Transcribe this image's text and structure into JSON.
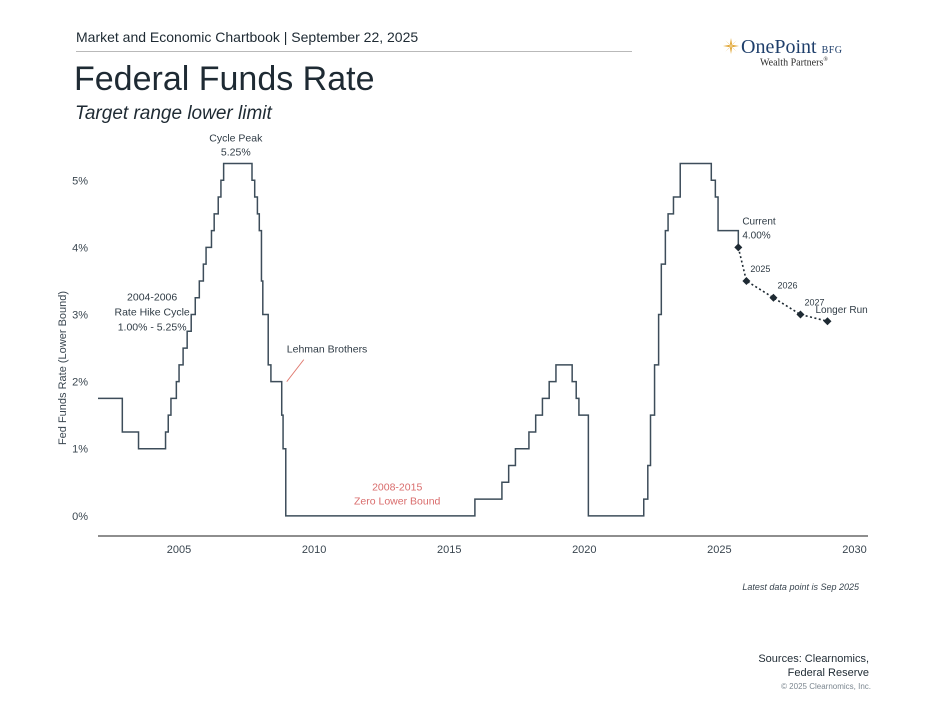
{
  "header": {
    "text": "Market and Economic Chartbook | September 22, 2025"
  },
  "logo": {
    "name": "OnePoint",
    "suffix": "BFG",
    "subtitle": "Wealth Partners",
    "trademark": "®"
  },
  "page_title": "Federal Funds Rate",
  "page_subtitle": "Target range lower limit",
  "note": "Latest data point is Sep 2025",
  "sources": {
    "line1": "Sources: Clearnomics,",
    "line2": "Federal Reserve"
  },
  "copyright": "© 2025 Clearnomics, Inc.",
  "colors": {
    "line": "#3d4d5a",
    "axis": "#4a4a4a",
    "zero_bound_text": "#d96c6c",
    "lehman_pointer": "#e07a70",
    "text": "#2f3b45"
  },
  "chart_data": {
    "type": "line",
    "ylabel": "Fed Funds Rate (Lower Bound)",
    "xlabel": "",
    "xlim": [
      2002.0,
      2030.5
    ],
    "ylim": [
      -0.3,
      5.6
    ],
    "x_ticks": [
      2005,
      2010,
      2015,
      2020,
      2025,
      2030
    ],
    "x_tick_labels": [
      "2005",
      "2010",
      "2015",
      "2020",
      "2025",
      "2030"
    ],
    "y_ticks": [
      0,
      1,
      2,
      3,
      4,
      5
    ],
    "y_tick_labels": [
      "0%",
      "1%",
      "2%",
      "3%",
      "4%",
      "5%"
    ],
    "grid": false,
    "series": [
      {
        "style": "step",
        "points": [
          [
            2002.0,
            1.75
          ],
          [
            2002.9,
            1.25
          ],
          [
            2003.5,
            1.0
          ],
          [
            2004.5,
            1.25
          ],
          [
            2004.6,
            1.5
          ],
          [
            2004.7,
            1.75
          ],
          [
            2004.9,
            2.0
          ],
          [
            2005.0,
            2.25
          ],
          [
            2005.15,
            2.5
          ],
          [
            2005.3,
            2.75
          ],
          [
            2005.45,
            3.0
          ],
          [
            2005.6,
            3.25
          ],
          [
            2005.75,
            3.5
          ],
          [
            2005.9,
            3.75
          ],
          [
            2006.0,
            4.0
          ],
          [
            2006.2,
            4.25
          ],
          [
            2006.3,
            4.5
          ],
          [
            2006.45,
            4.75
          ],
          [
            2006.55,
            5.0
          ],
          [
            2006.65,
            5.25
          ],
          [
            2007.7,
            5.0
          ],
          [
            2007.8,
            4.75
          ],
          [
            2007.9,
            4.5
          ],
          [
            2007.97,
            4.25
          ],
          [
            2008.05,
            3.5
          ],
          [
            2008.1,
            3.0
          ],
          [
            2008.3,
            2.25
          ],
          [
            2008.4,
            2.0
          ],
          [
            2008.8,
            1.5
          ],
          [
            2008.85,
            1.0
          ],
          [
            2008.95,
            0.0
          ],
          [
            2015.95,
            0.25
          ],
          [
            2016.95,
            0.5
          ],
          [
            2017.2,
            0.75
          ],
          [
            2017.45,
            1.0
          ],
          [
            2017.95,
            1.25
          ],
          [
            2018.2,
            1.5
          ],
          [
            2018.45,
            1.75
          ],
          [
            2018.7,
            2.0
          ],
          [
            2018.95,
            2.25
          ],
          [
            2019.55,
            2.0
          ],
          [
            2019.7,
            1.75
          ],
          [
            2019.8,
            1.5
          ],
          [
            2020.15,
            0.0
          ],
          [
            2022.2,
            0.25
          ],
          [
            2022.35,
            0.75
          ],
          [
            2022.45,
            1.5
          ],
          [
            2022.6,
            2.25
          ],
          [
            2022.75,
            3.0
          ],
          [
            2022.85,
            3.75
          ],
          [
            2023.0,
            4.25
          ],
          [
            2023.1,
            4.5
          ],
          [
            2023.3,
            4.75
          ],
          [
            2023.55,
            5.0
          ],
          [
            2023.55,
            5.25
          ],
          [
            2024.7,
            5.0
          ],
          [
            2024.85,
            4.75
          ],
          [
            2024.95,
            4.25
          ],
          [
            2025.7,
            4.0
          ]
        ]
      },
      {
        "style": "projection",
        "points": [
          [
            2025.7,
            4.0
          ],
          [
            2026.0,
            3.5
          ],
          [
            2027.0,
            3.25
          ],
          [
            2028.0,
            3.0
          ],
          [
            2029.0,
            2.9
          ]
        ],
        "labels": [
          "Current\n4.00%",
          "2025",
          "2026",
          "2027",
          "Longer Run"
        ]
      }
    ],
    "annotations": [
      {
        "text": "Cycle Peak\n5.25%",
        "x": 2007.1,
        "y": 5.25,
        "kind": "peak"
      },
      {
        "text": "2004-2006\nRate Hike Cycle\n1.00% - 5.25%",
        "x": 2004.3,
        "y": 3.0,
        "kind": "label"
      },
      {
        "text": "Lehman Brothers",
        "x": 2008.95,
        "y": 2.0,
        "kind": "pointer"
      },
      {
        "text": "2008-2015\nZero Lower Bound",
        "x": 2013.0,
        "y": 0.3,
        "kind": "zero"
      }
    ]
  }
}
